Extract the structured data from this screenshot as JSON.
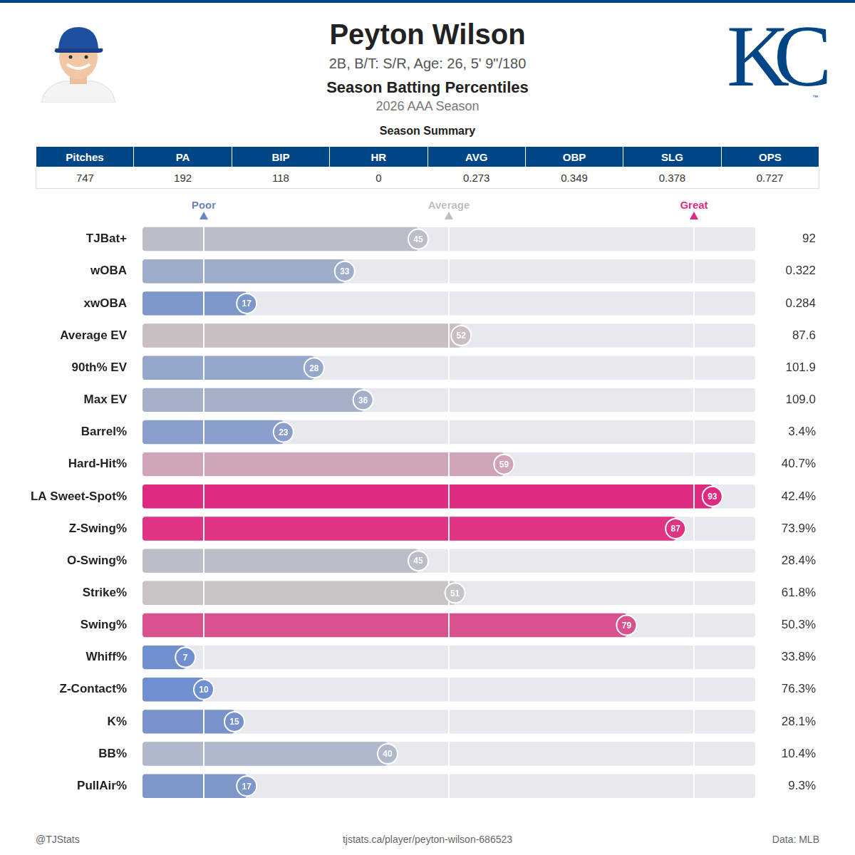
{
  "header": {
    "name": "Peyton Wilson",
    "info": "2B, B/T: S/R, Age: 26, 5' 9\"/180",
    "title": "Season Batting Percentiles",
    "season": "2026 AAA Season",
    "logo_text": "KC",
    "logo_mark": "™"
  },
  "summary": {
    "title": "Season Summary",
    "columns": [
      "Pitches",
      "PA",
      "BIP",
      "HR",
      "AVG",
      "OBP",
      "SLG",
      "OPS"
    ],
    "values": [
      "747",
      "192",
      "118",
      "0",
      "0.273",
      "0.349",
      "0.378",
      "0.727"
    ]
  },
  "chart_data": {
    "type": "bar",
    "orientation": "horizontal",
    "categories": [
      "TJBat+",
      "wOBA",
      "xwOBA",
      "Average EV",
      "90th% EV",
      "Max EV",
      "Barrel%",
      "Hard-Hit%",
      "LA Sweet-Spot%",
      "Z-Swing%",
      "O-Swing%",
      "Strike%",
      "Swing%",
      "Whiff%",
      "Z-Contact%",
      "K%",
      "BB%",
      "PullAir%"
    ],
    "values": [
      45,
      33,
      17,
      52,
      28,
      36,
      23,
      59,
      93,
      87,
      45,
      51,
      79,
      7,
      10,
      15,
      40,
      17
    ],
    "colors": [
      "#bbbec8",
      "#9eadc9",
      "#7d97c8",
      "#c8bec3",
      "#95a8cb",
      "#a4b0c8",
      "#8a9ecb",
      "#cfa3b8",
      "#de2a80",
      "#df3384",
      "#bbbec8",
      "#c8c3c6",
      "#d8528f",
      "#6f8fce",
      "#6f8fce",
      "#7893ca",
      "#b0b8cc",
      "#7d97c8"
    ],
    "stat_values": [
      "92",
      "0.322",
      "0.284",
      "87.6",
      "101.9",
      "109.0",
      "3.4%",
      "40.7%",
      "42.4%",
      "73.9%",
      "28.4%",
      "61.8%",
      "50.3%",
      "33.8%",
      "76.3%",
      "28.1%",
      "10.4%",
      "9.3%"
    ],
    "xlim": [
      0,
      100
    ],
    "reference_lines": [
      {
        "value": 10,
        "label": "Poor",
        "color": "#6a86c0"
      },
      {
        "value": 50,
        "label": "Average",
        "color": "#bdbdbd"
      },
      {
        "value": 90,
        "label": "Great",
        "color": "#de2a80"
      }
    ],
    "data_labels": true,
    "tick_labels": "y",
    "grid": false
  },
  "footer": {
    "left": "@TJStats",
    "center": "tjstats.ca/player/peyton-wilson-686523",
    "right": "Data: MLB"
  }
}
